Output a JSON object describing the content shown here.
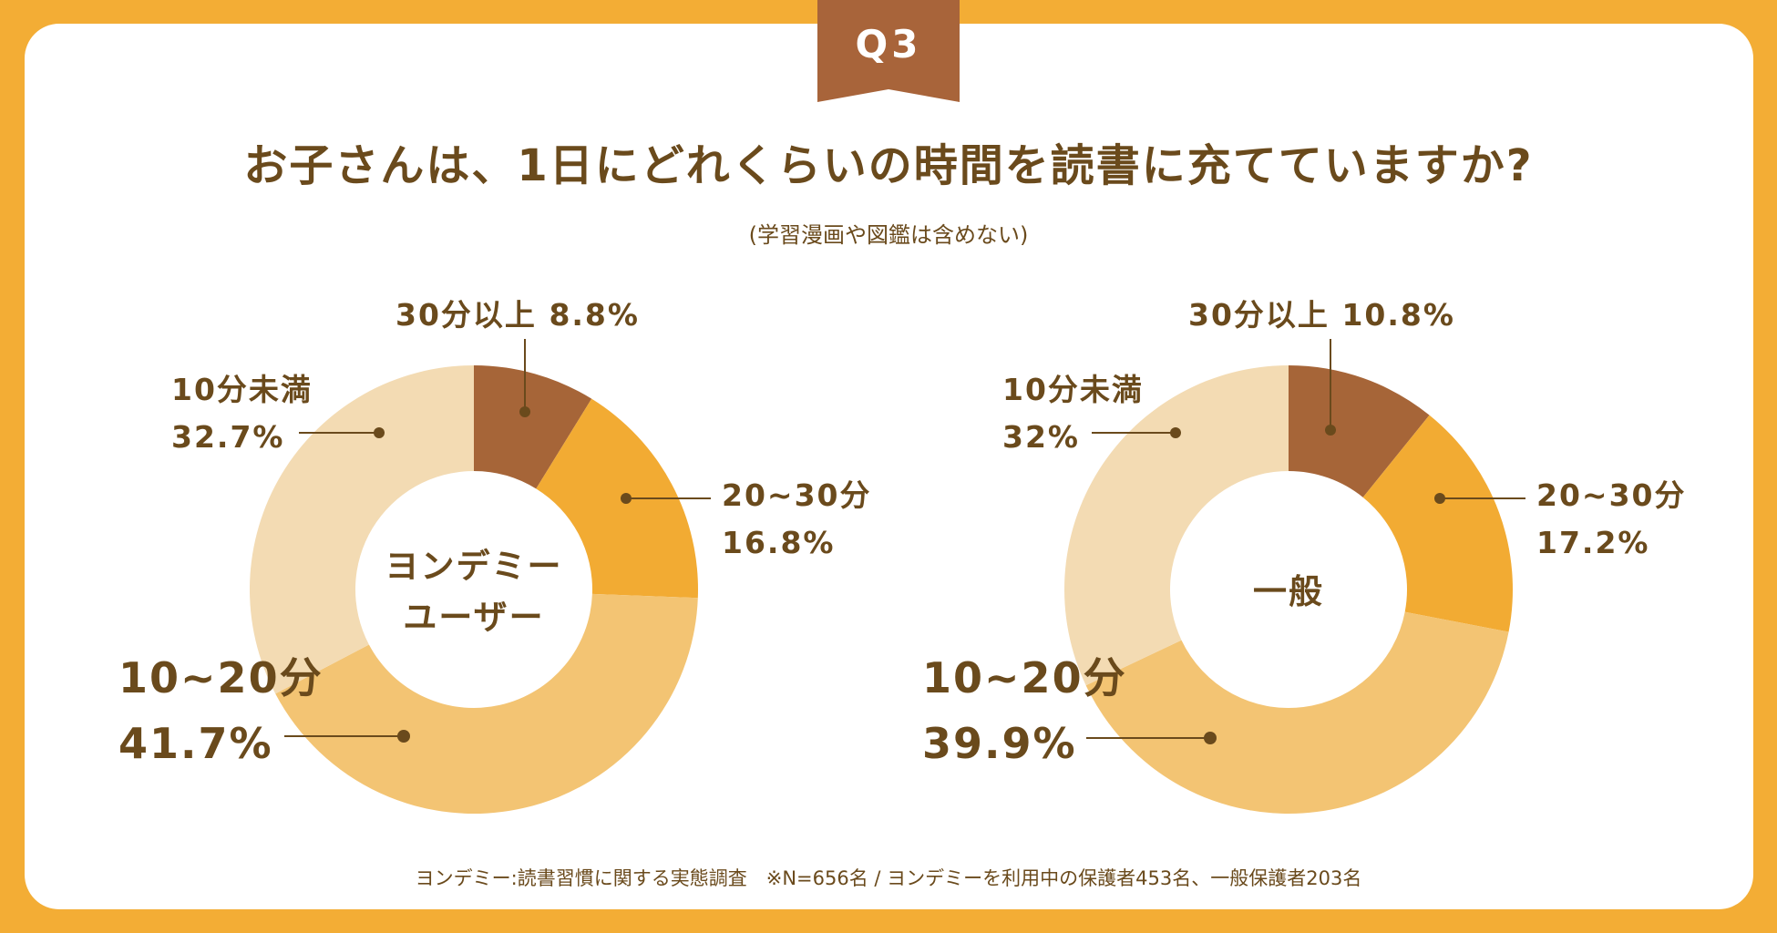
{
  "badge": {
    "label": "Q3"
  },
  "header": {
    "title": "お子さんは、1日にどれくらいの時間を読書に充てていますか?",
    "subtitle": "(学習漫画や図鑑は含めない)"
  },
  "colors": {
    "background": "#f3ad35",
    "badge": "#a8643a",
    "text": "#6a4a1c",
    "slice_30plus": "#a66538",
    "slice_20_30": "#f2ab33",
    "slice_10_20": "#f3c473",
    "slice_under10": "#f3dbb3"
  },
  "chart_data": [
    {
      "type": "pie",
      "center_label": [
        "ヨンデミー",
        "ユーザー"
      ],
      "slices": [
        {
          "label": "30分以上",
          "value": 8.8,
          "value_label": "8.8%"
        },
        {
          "label": "20~30分",
          "value": 16.8,
          "value_label": "16.8%"
        },
        {
          "label": "10~20分",
          "value": 41.7,
          "value_label": "41.7%"
        },
        {
          "label": "10分未満",
          "value": 32.7,
          "value_label": "32.7%"
        }
      ]
    },
    {
      "type": "pie",
      "center_label": [
        "一般"
      ],
      "slices": [
        {
          "label": "30分以上",
          "value": 10.8,
          "value_label": "10.8%"
        },
        {
          "label": "20~30分",
          "value": 17.2,
          "value_label": "17.2%"
        },
        {
          "label": "10~20分",
          "value": 39.9,
          "value_label": "39.9%"
        },
        {
          "label": "10分未満",
          "value": 32,
          "value_label": "32%"
        }
      ]
    }
  ],
  "footnote": "ヨンデミー:読書習慣に関する実態調査　※N=656名 / ヨンデミーを利用中の保護者453名、一般保護者203名"
}
